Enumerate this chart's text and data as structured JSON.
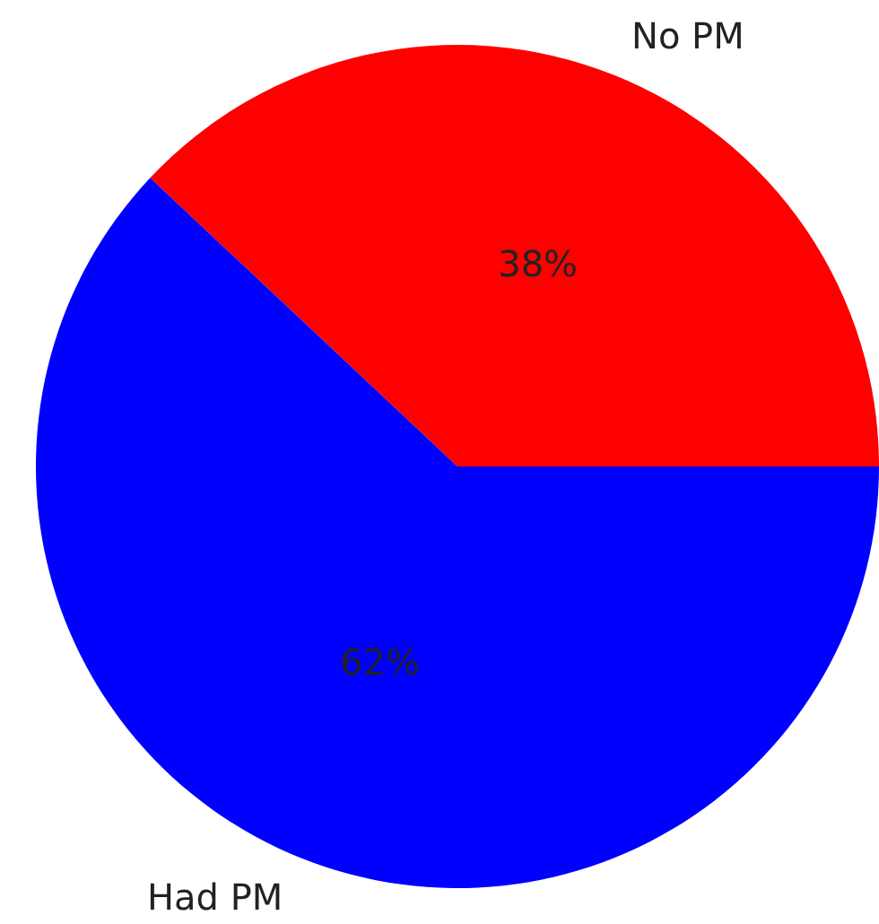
{
  "chart_data": {
    "type": "pie",
    "categories": [
      "No PM",
      "Had PM"
    ],
    "values": [
      38,
      62
    ],
    "colors": [
      "#ff0000",
      "#0000ff"
    ],
    "value_labels": [
      "38%",
      "62%"
    ],
    "legend": false
  }
}
